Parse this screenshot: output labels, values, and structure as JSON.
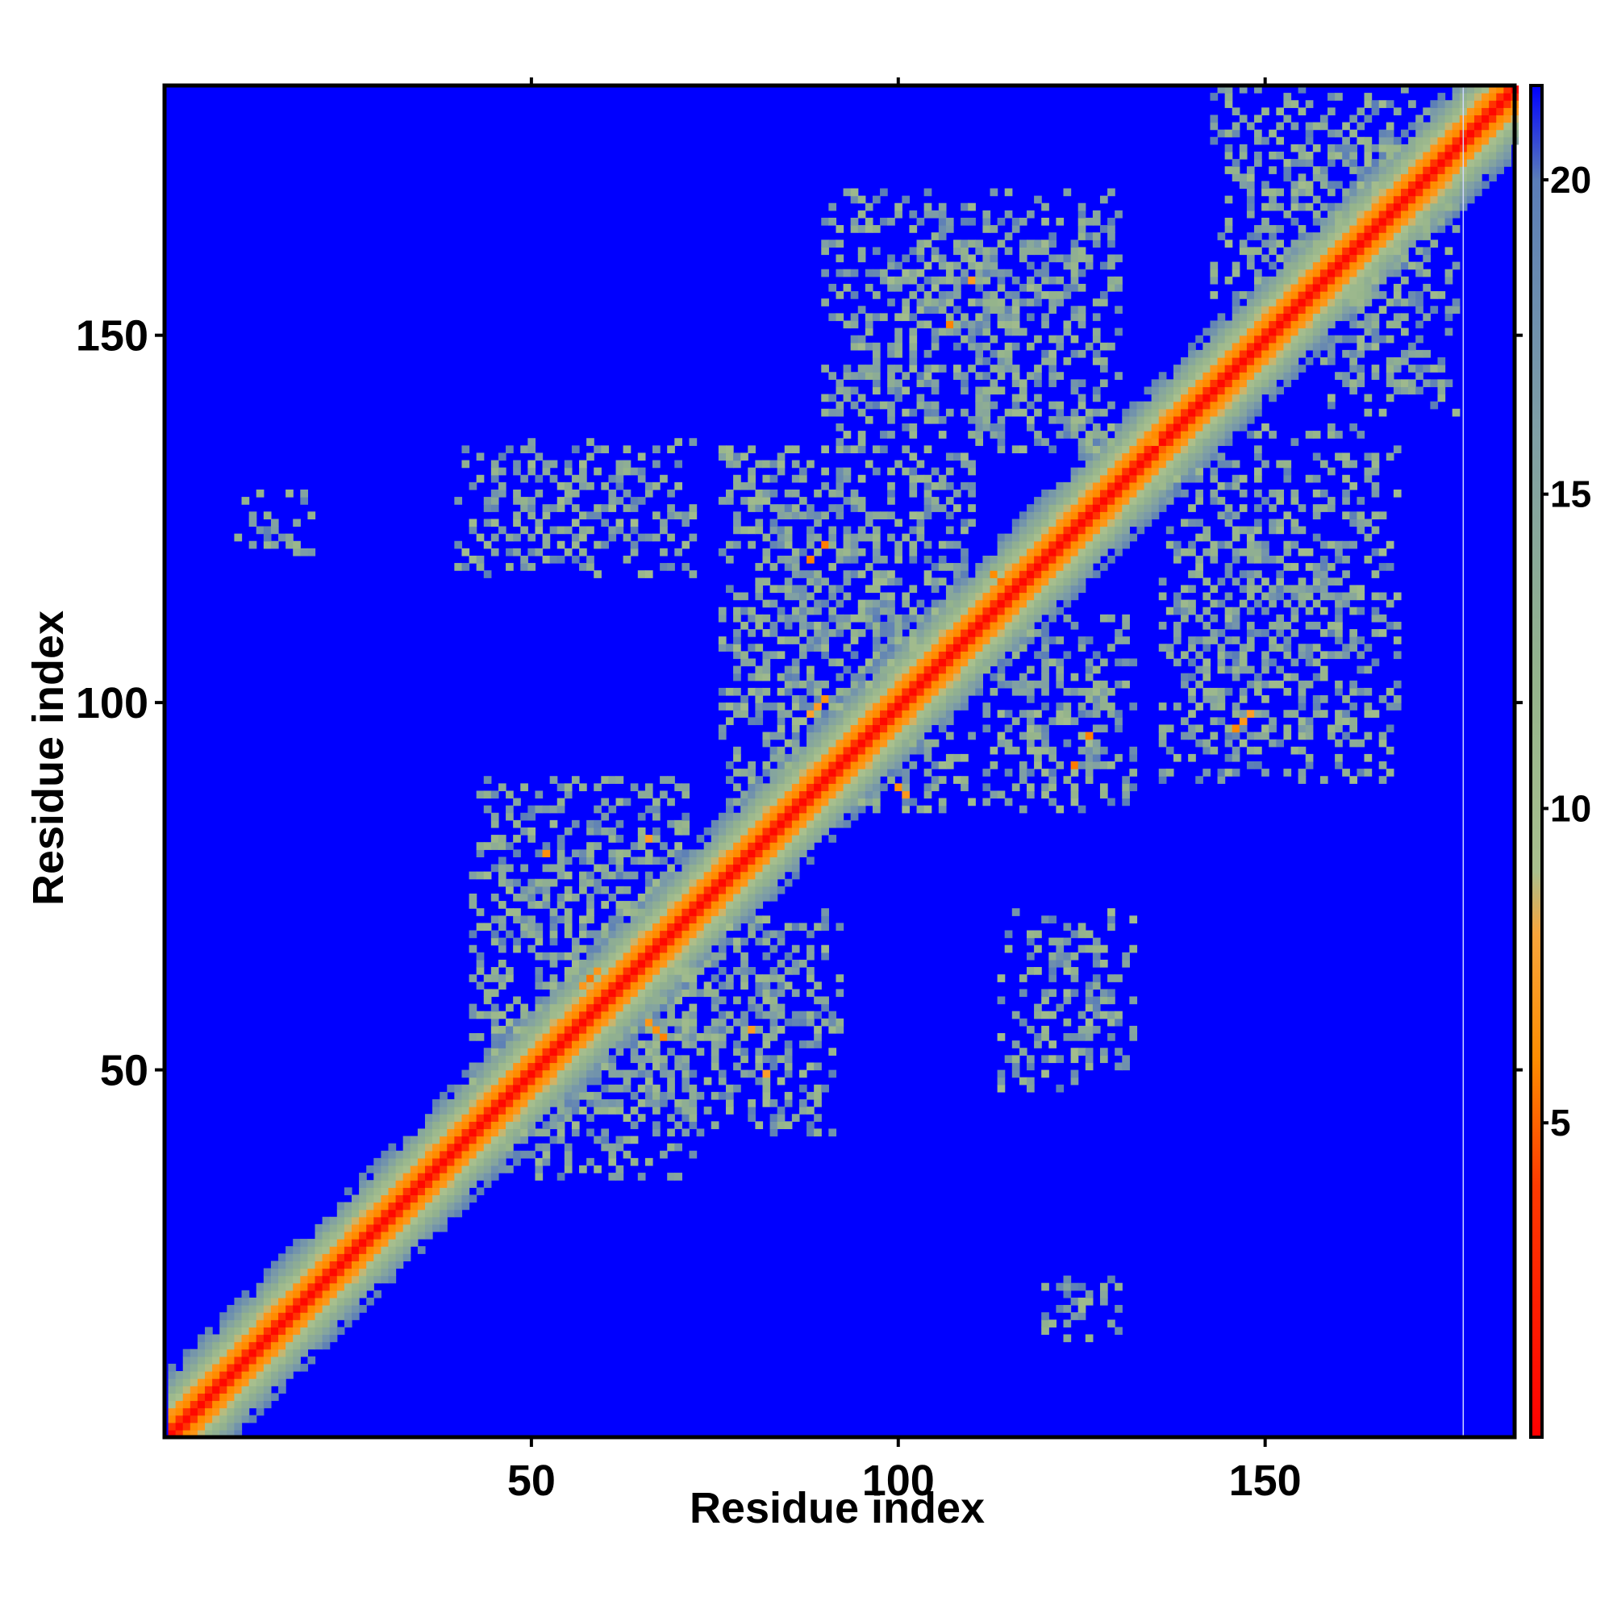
{
  "chart_data": {
    "type": "heatmap",
    "title": "",
    "xlabel": "Residue index",
    "ylabel": "Residue index",
    "xlim": [
      1,
      184
    ],
    "ylim": [
      1,
      184
    ],
    "x_ticks": [
      50,
      100,
      150
    ],
    "y_ticks": [
      50,
      100,
      150
    ],
    "x_tick_labels": [
      "50",
      "100",
      "150"
    ],
    "y_tick_labels": [
      "50",
      "100",
      "150"
    ],
    "colorbar": {
      "range": [
        0,
        21.5
      ],
      "ticks": [
        5,
        10,
        15,
        20
      ],
      "tick_labels": [
        "5",
        "10",
        "15",
        "20"
      ],
      "colors": [
        {
          "stop": 0,
          "color": "#ff0000"
        },
        {
          "stop": 4,
          "color": "#ff3a00"
        },
        {
          "stop": 6,
          "color": "#ff8c00"
        },
        {
          "stop": 8,
          "color": "#f9a53b"
        },
        {
          "stop": 9,
          "color": "#a9c08e"
        },
        {
          "stop": 12,
          "color": "#95b48c"
        },
        {
          "stop": 16,
          "color": "#7f9fa5"
        },
        {
          "stop": 20,
          "color": "#5a7db8"
        },
        {
          "stop": 21.5,
          "color": "#0000ff"
        }
      ]
    },
    "background_value": 21.5,
    "diagonal_band": {
      "description": "distance increases with |i-j|",
      "half_width": 9
    },
    "contact_regions": [
      {
        "x": [
          42,
          72
        ],
        "y": [
          36,
          90
        ],
        "density": 0.55
      },
      {
        "x": [
          64,
          92
        ],
        "y": [
          42,
          72
        ],
        "density": 0.5
      },
      {
        "x": [
          76,
          110
        ],
        "y": [
          86,
          135
        ],
        "density": 0.55
      },
      {
        "x": [
          90,
          130
        ],
        "y": [
          135,
          170
        ],
        "density": 0.55
      },
      {
        "x": [
          40,
          72
        ],
        "y": [
          118,
          136
        ],
        "density": 0.45
      },
      {
        "x": [
          10,
          20
        ],
        "y": [
          121,
          129
        ],
        "density": 0.45
      },
      {
        "x": [
          112,
          132
        ],
        "y": [
          86,
          112
        ],
        "density": 0.5
      },
      {
        "x": [
          114,
          132
        ],
        "y": [
          48,
          72
        ],
        "density": 0.45
      },
      {
        "x": [
          120,
          130
        ],
        "y": [
          14,
          22
        ],
        "density": 0.45
      },
      {
        "x": [
          136,
          168
        ],
        "y": [
          90,
          138
        ],
        "density": 0.5
      },
      {
        "x": [
          143,
          172
        ],
        "y": [
          155,
          184
        ],
        "density": 0.45
      },
      {
        "x": [
          158,
          176
        ],
        "y": [
          140,
          176
        ],
        "density": 0.45
      }
    ],
    "close_contacts": [
      {
        "x": 57,
        "y": 62
      },
      {
        "x": 58,
        "y": 63
      },
      {
        "x": 59,
        "y": 64
      },
      {
        "x": 66,
        "y": 57
      },
      {
        "x": 67,
        "y": 56
      },
      {
        "x": 68,
        "y": 55
      },
      {
        "x": 88,
        "y": 99
      },
      {
        "x": 89,
        "y": 100
      },
      {
        "x": 90,
        "y": 101
      },
      {
        "x": 100,
        "y": 89
      },
      {
        "x": 101,
        "y": 88
      },
      {
        "x": 114,
        "y": 117
      },
      {
        "x": 113,
        "y": 118
      },
      {
        "x": 135,
        "y": 136
      },
      {
        "x": 136,
        "y": 135
      },
      {
        "x": 146,
        "y": 97
      },
      {
        "x": 147,
        "y": 98
      },
      {
        "x": 148,
        "y": 99
      },
      {
        "x": 88,
        "y": 120
      },
      {
        "x": 90,
        "y": 122
      },
      {
        "x": 107,
        "y": 152
      },
      {
        "x": 110,
        "y": 158
      },
      {
        "x": 52,
        "y": 80
      },
      {
        "x": 66,
        "y": 82
      },
      {
        "x": 80,
        "y": 56
      },
      {
        "x": 82,
        "y": 50
      },
      {
        "x": 124,
        "y": 92
      },
      {
        "x": 126,
        "y": 96
      }
    ],
    "gap_column": 177
  }
}
